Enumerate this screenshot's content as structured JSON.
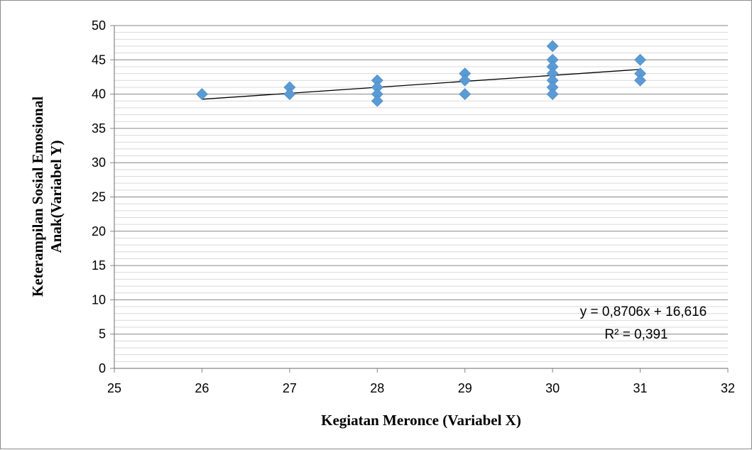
{
  "chart_data": {
    "type": "scatter",
    "title": "",
    "xlabel": "Kegiatan Meronce (Variabel X)",
    "ylabel_lines": [
      "Keterampilan Sosial Emosional",
      "Anak(Variabel Y)"
    ],
    "xlim": [
      25,
      32
    ],
    "ylim": [
      0,
      50
    ],
    "x_ticks": [
      25,
      26,
      27,
      28,
      29,
      30,
      31,
      32
    ],
    "y_ticks": [
      0,
      5,
      10,
      15,
      20,
      25,
      30,
      35,
      40,
      45,
      50
    ],
    "minor_grid_step": 1,
    "grid": true,
    "legend": "none",
    "marker": "diamond",
    "marker_color": "#5b9bd5",
    "points": [
      {
        "x": 26,
        "y": 40
      },
      {
        "x": 27,
        "y": 41
      },
      {
        "x": 27,
        "y": 40
      },
      {
        "x": 28,
        "y": 42
      },
      {
        "x": 28,
        "y": 41
      },
      {
        "x": 28,
        "y": 40
      },
      {
        "x": 28,
        "y": 39
      },
      {
        "x": 29,
        "y": 43
      },
      {
        "x": 29,
        "y": 42
      },
      {
        "x": 29,
        "y": 40
      },
      {
        "x": 30,
        "y": 47
      },
      {
        "x": 30,
        "y": 45
      },
      {
        "x": 30,
        "y": 44
      },
      {
        "x": 30,
        "y": 43
      },
      {
        "x": 30,
        "y": 42
      },
      {
        "x": 30,
        "y": 41
      },
      {
        "x": 30,
        "y": 40
      },
      {
        "x": 31,
        "y": 45
      },
      {
        "x": 31,
        "y": 43
      },
      {
        "x": 31,
        "y": 42
      }
    ],
    "trendline": {
      "slope": 0.8706,
      "intercept": 16.616,
      "x_range": [
        26,
        31
      ],
      "color": "#000000",
      "equation_label": "y = 0,8706x + 16,616",
      "r2_label": "R² = 0,391"
    }
  }
}
